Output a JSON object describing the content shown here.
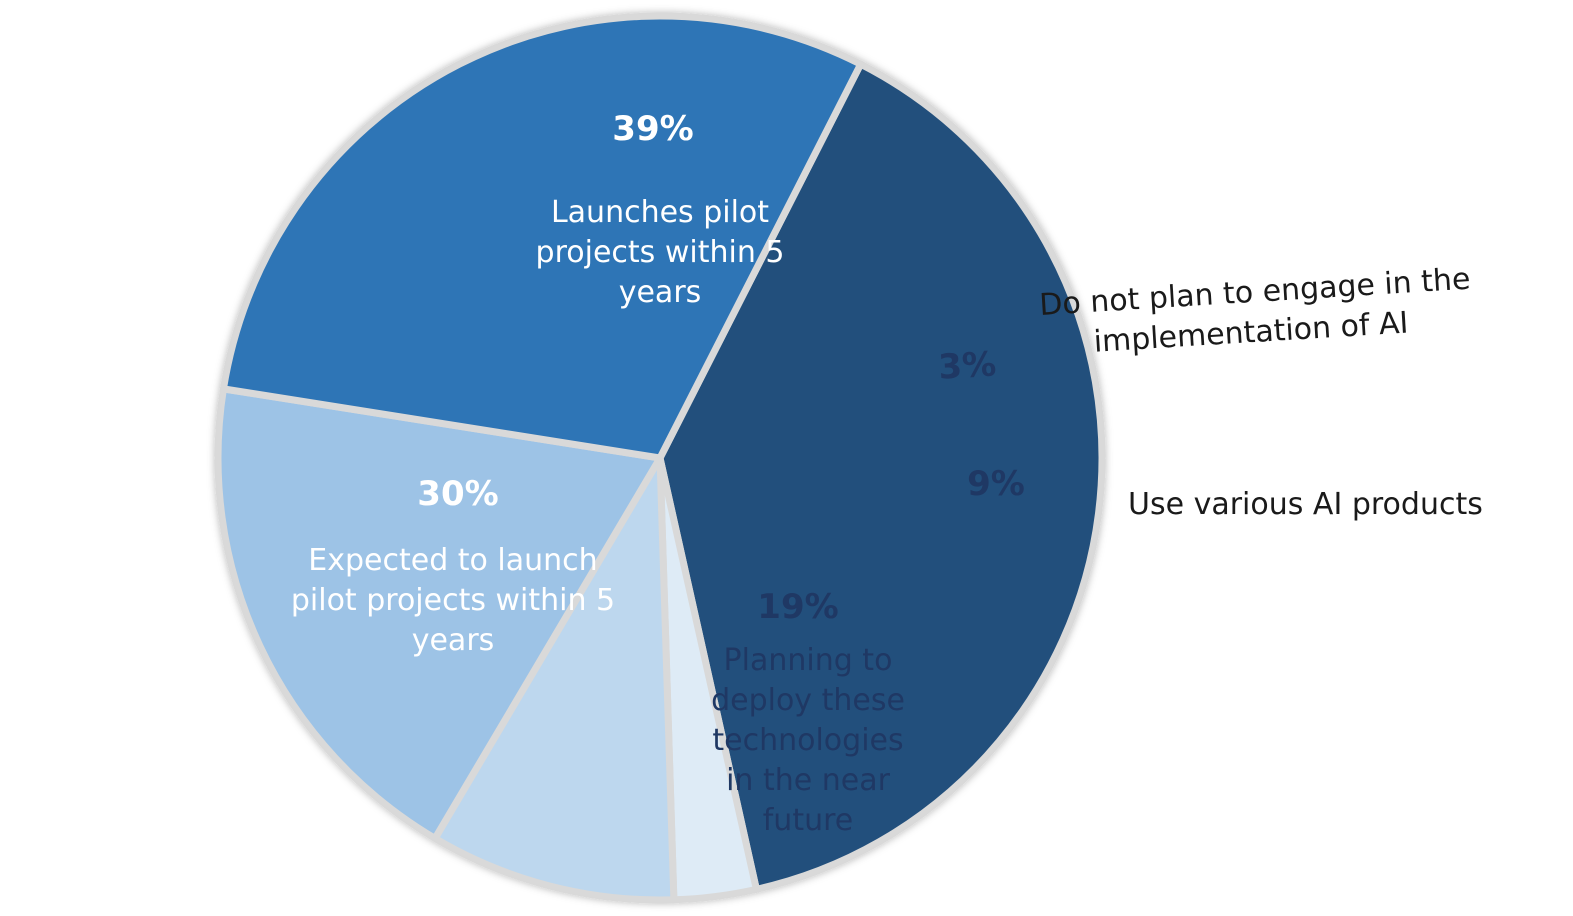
{
  "chart_data": {
    "type": "pie",
    "title": "",
    "slices": [
      {
        "value": 39,
        "value_label": "39%",
        "label_lines": [
          "Launches pilot",
          "projects within 5",
          "years"
        ],
        "color": "#214f7b",
        "text_color": "#ffffff",
        "label_placement": "inside"
      },
      {
        "value": 3,
        "value_label": "3%",
        "label_lines": [
          "Do not plan to engage in the",
          "implementation of AI"
        ],
        "color": "#deebf6",
        "text_color": "#1f3864",
        "label_placement": "outside"
      },
      {
        "value": 9,
        "value_label": "9%",
        "label_lines": [
          "Use various AI products"
        ],
        "color": "#bdd7ee",
        "text_color": "#1f3864",
        "label_placement": "outside"
      },
      {
        "value": 19,
        "value_label": "19%",
        "label_lines": [
          "Planning to",
          "deploy these",
          "technologies",
          "in the near",
          "future"
        ],
        "color": "#9dc3e6",
        "text_color": "#1f3864",
        "label_placement": "inside"
      },
      {
        "value": 30,
        "value_label": "30%",
        "label_lines": [
          "Expected to launch",
          "pilot projects within 5",
          "years"
        ],
        "color": "#2e75b6",
        "text_color": "#ffffff",
        "label_placement": "inside"
      }
    ],
    "outside_label_color": "#1a1a1a",
    "legend": "none"
  }
}
